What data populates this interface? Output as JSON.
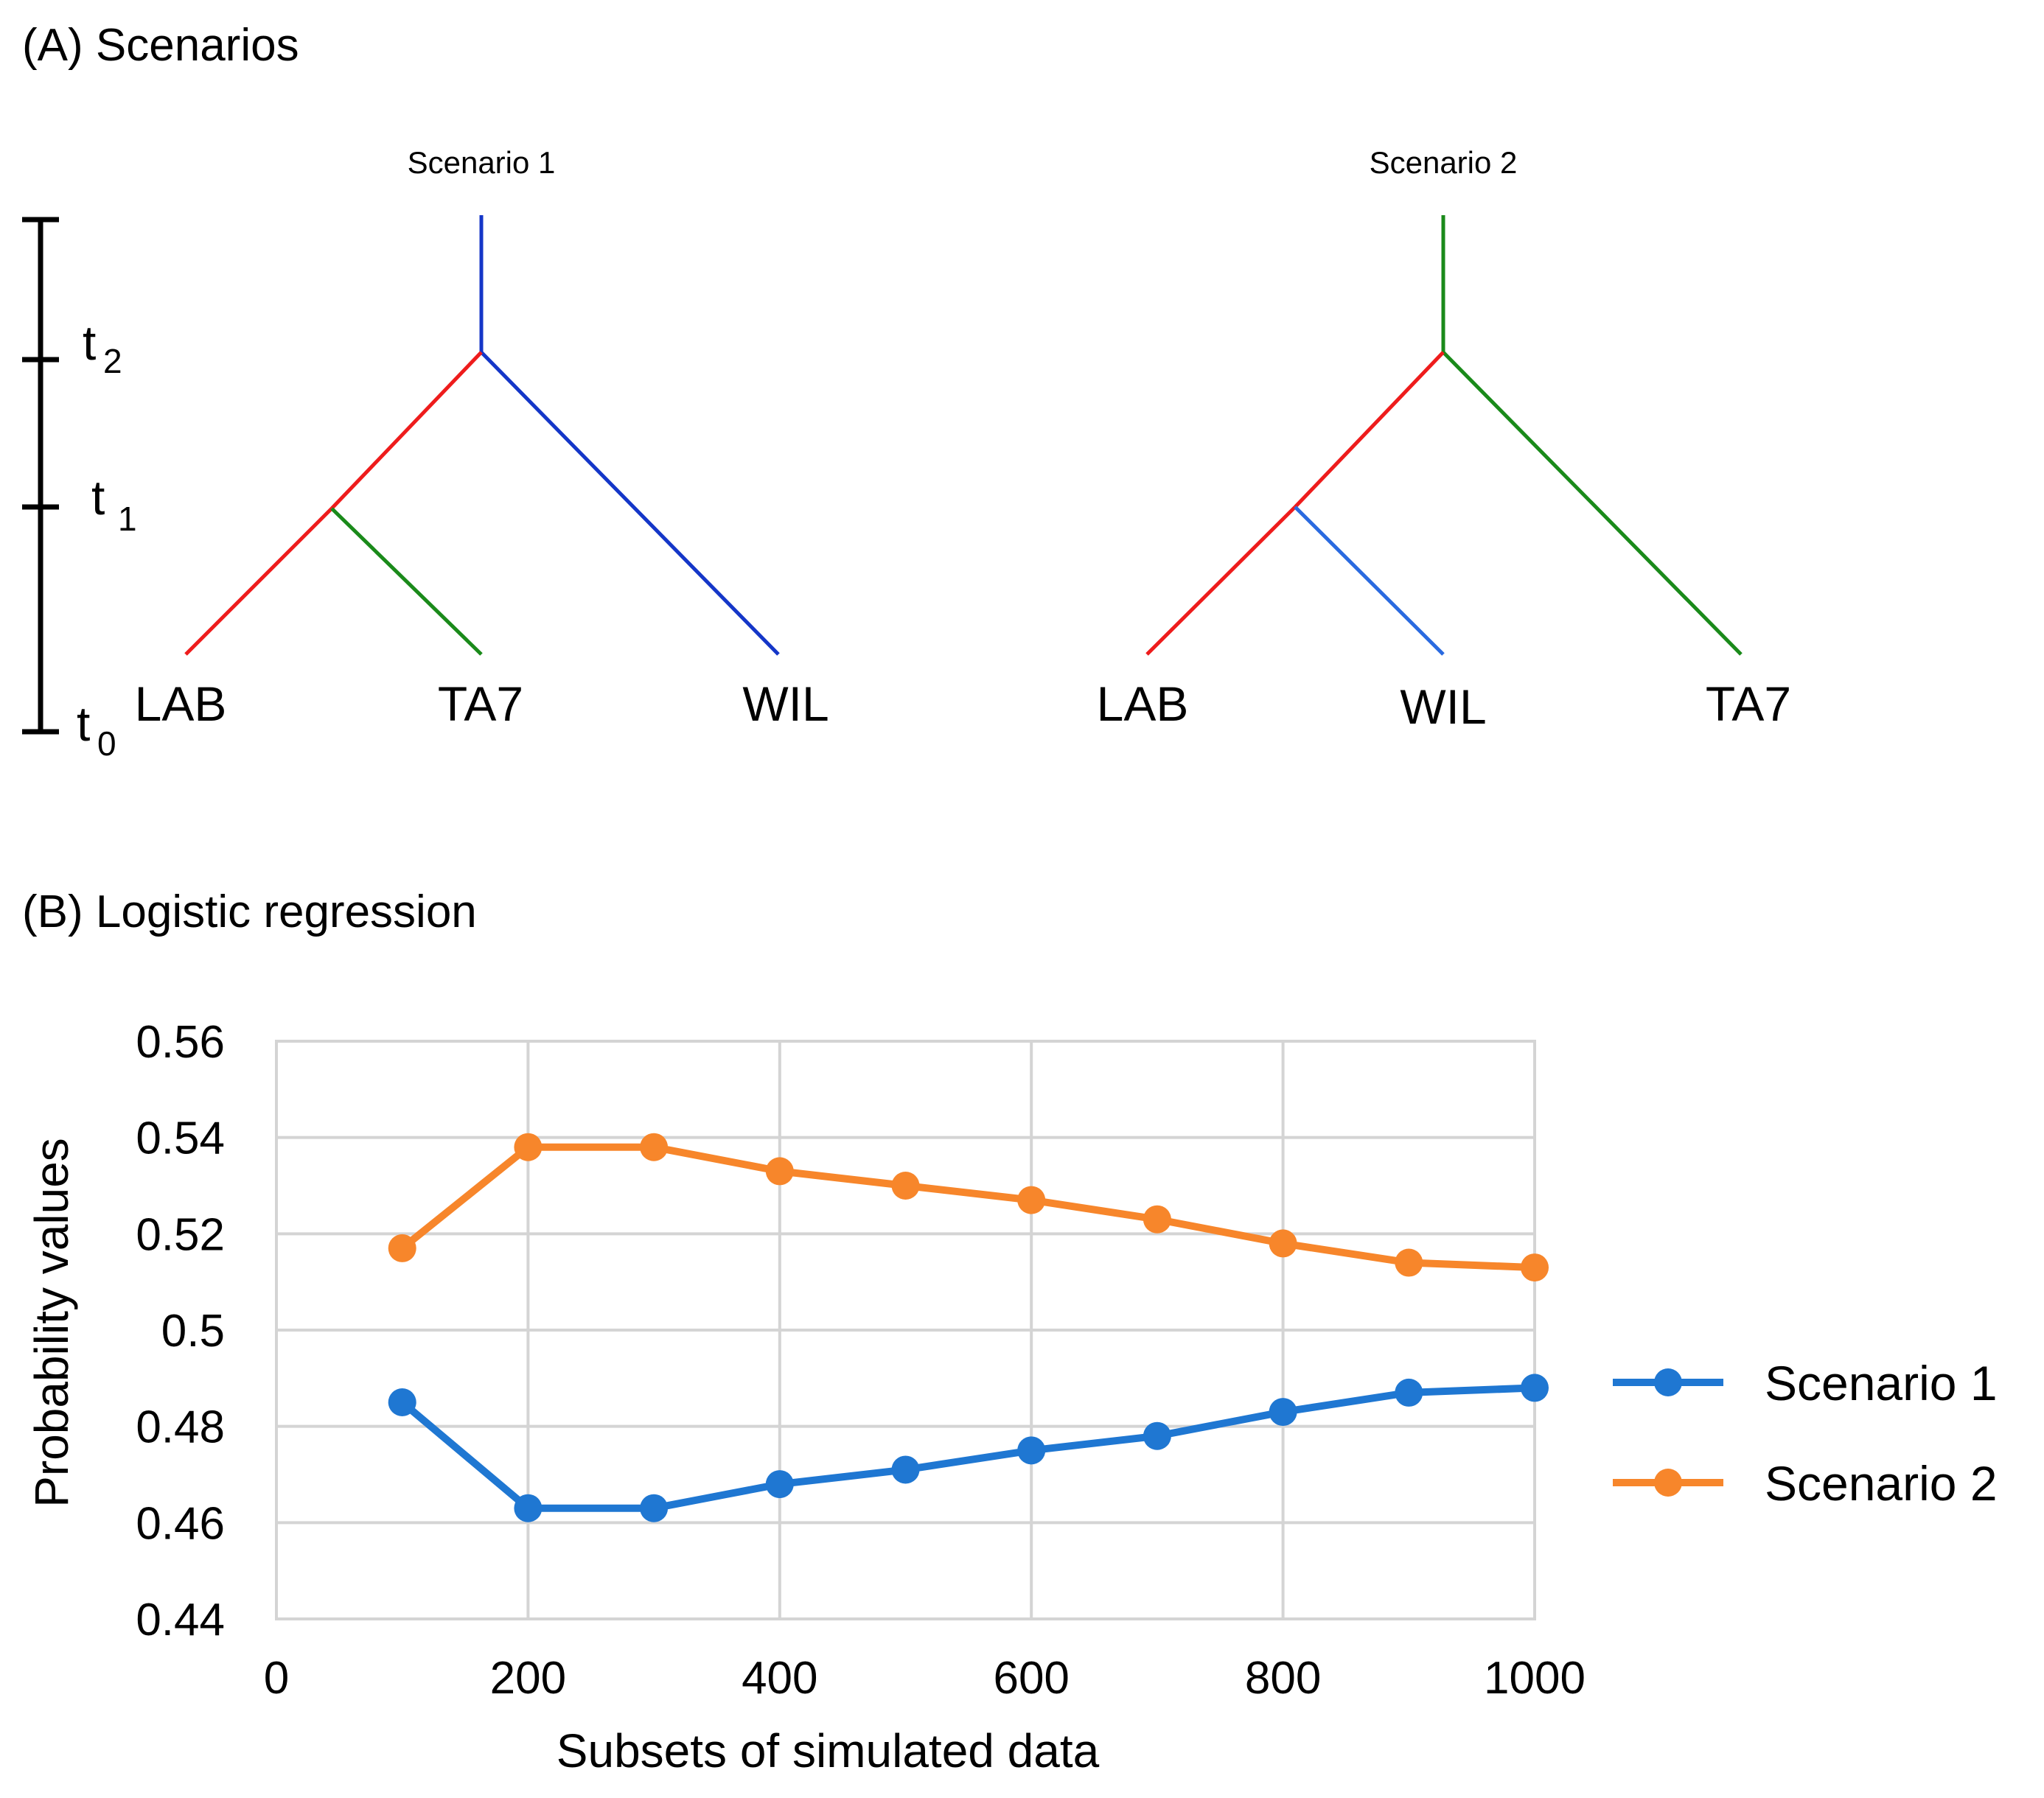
{
  "panel_a": {
    "label": "(A) Scenarios",
    "time_axis": {
      "t0": "t",
      "t0_sub": "0",
      "t1": "t",
      "t1_sub": "1",
      "t2": "t",
      "t2_sub": "2"
    },
    "scenario1": {
      "title": "Scenario 1",
      "leaves": [
        "LAB",
        "TA7",
        "WIL"
      ]
    },
    "scenario2": {
      "title": "Scenario 2",
      "leaves": [
        "LAB",
        "WIL",
        "TA7"
      ]
    },
    "colors": {
      "red": "#ee1c1c",
      "green": "#1a8a1a",
      "blue": "#1436c8",
      "blue_light": "#2a6ae0"
    }
  },
  "panel_b": {
    "label": "(B) Logistic regression"
  },
  "chart_data": {
    "type": "line",
    "title": "",
    "xlabel": "Subsets of simulated data",
    "ylabel": "Probability values",
    "xlim": [
      0,
      1000
    ],
    "ylim": [
      0.44,
      0.56
    ],
    "xticks": [
      0,
      200,
      400,
      600,
      800,
      1000
    ],
    "xtick_labels": [
      "0",
      "200",
      "400",
      "600",
      "800",
      "1000"
    ],
    "yticks": [
      0.44,
      0.46,
      0.48,
      0.5,
      0.52,
      0.54,
      0.56
    ],
    "ytick_labels": [
      "0.44",
      "0.46",
      "0.48",
      "0.5",
      "0.52",
      "0.54",
      "0.56"
    ],
    "grid": true,
    "legend_position": "right",
    "x": [
      100,
      200,
      300,
      400,
      500,
      600,
      700,
      800,
      900,
      1000
    ],
    "series": [
      {
        "name": "Scenario 1",
        "color": "#1f77d2",
        "values": [
          0.485,
          0.463,
          0.463,
          0.468,
          0.471,
          0.475,
          0.478,
          0.483,
          0.487,
          0.488
        ]
      },
      {
        "name": "Scenario 2",
        "color": "#f7862b",
        "values": [
          0.517,
          0.538,
          0.538,
          0.533,
          0.53,
          0.527,
          0.523,
          0.518,
          0.514,
          0.513
        ]
      }
    ]
  }
}
